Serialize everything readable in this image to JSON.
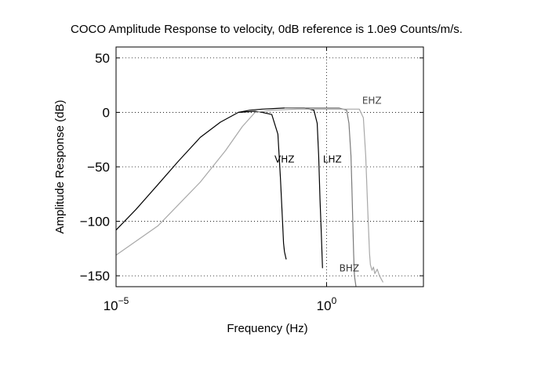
{
  "chart_data": {
    "type": "line",
    "title": "COCO Amplitude Response to velocity, 0dB reference is 1.0e9 Counts/m/s.",
    "xlabel": "Frequency (Hz)",
    "ylabel": "Amplitude Response (dB)",
    "x_scale": "log",
    "xlim": [
      1e-05,
      200
    ],
    "ylim": [
      -160,
      60
    ],
    "x_ticks": [
      {
        "value": 1e-05,
        "base": "10",
        "exp": "−5"
      },
      {
        "value": 1,
        "base": "10",
        "exp": "0"
      }
    ],
    "y_ticks": [
      {
        "value": 50,
        "label": "50"
      },
      {
        "value": 0,
        "label": "0"
      },
      {
        "value": -50,
        "label": "−50"
      },
      {
        "value": -100,
        "label": "−100"
      },
      {
        "value": -150,
        "label": "−150"
      }
    ],
    "grid": true,
    "series": [
      {
        "name": "VHZ",
        "color": "#000000",
        "x": [
          1e-05,
          3e-05,
          0.0001,
          0.0003,
          0.001,
          0.003,
          0.008,
          0.02,
          0.03,
          0.05,
          0.07,
          0.08,
          0.09,
          0.095,
          0.1,
          0.11
        ],
        "y": [
          -108,
          -89,
          -66,
          -45,
          -23,
          -9,
          0,
          1,
          0,
          -2,
          -20,
          -60,
          -100,
          -120,
          -128,
          -135
        ]
      },
      {
        "name": "LHZ",
        "color": "#000000",
        "x": [
          0.008,
          0.015,
          0.03,
          0.1,
          0.3,
          0.5,
          0.6,
          0.65,
          0.7,
          0.75,
          0.8
        ],
        "y": [
          0,
          2,
          3,
          4,
          4,
          2,
          -10,
          -40,
          -80,
          -110,
          -143
        ]
      },
      {
        "name": "BHZ",
        "color": "#7a7a7a",
        "x": [
          0.1,
          0.5,
          1,
          2,
          3,
          3.4,
          3.8,
          4,
          4.2,
          4.4,
          4.6,
          5
        ],
        "y": [
          4,
          4,
          4,
          4,
          2,
          -10,
          -40,
          -70,
          -100,
          -130,
          -150,
          -160
        ]
      },
      {
        "name": "EHZ",
        "color": "#a8a8a8",
        "x": [
          1e-05,
          0.0001,
          0.001,
          0.004,
          0.01,
          0.02,
          0.05,
          0.2,
          1,
          3,
          6,
          7.5,
          8.5,
          9.5,
          10.5,
          11,
          12,
          13,
          14,
          16,
          18,
          22
        ],
        "y": [
          -131,
          -104,
          -64,
          -35,
          -13,
          0,
          2,
          3,
          3,
          3,
          3,
          -5,
          -40,
          -90,
          -130,
          -140,
          -145,
          -142,
          -148,
          -144,
          -150,
          -156
        ]
      }
    ],
    "annotations": [
      {
        "text": "EHZ",
        "x": 7,
        "y": 8,
        "color": "#444444"
      },
      {
        "text": "VHZ",
        "x": 0.058,
        "y": -46,
        "color": "#000000"
      },
      {
        "text": "LHZ",
        "x": 0.82,
        "y": -46,
        "color": "#000000"
      },
      {
        "text": "BHZ",
        "x": 2.0,
        "y": -146,
        "color": "#333333"
      }
    ]
  }
}
